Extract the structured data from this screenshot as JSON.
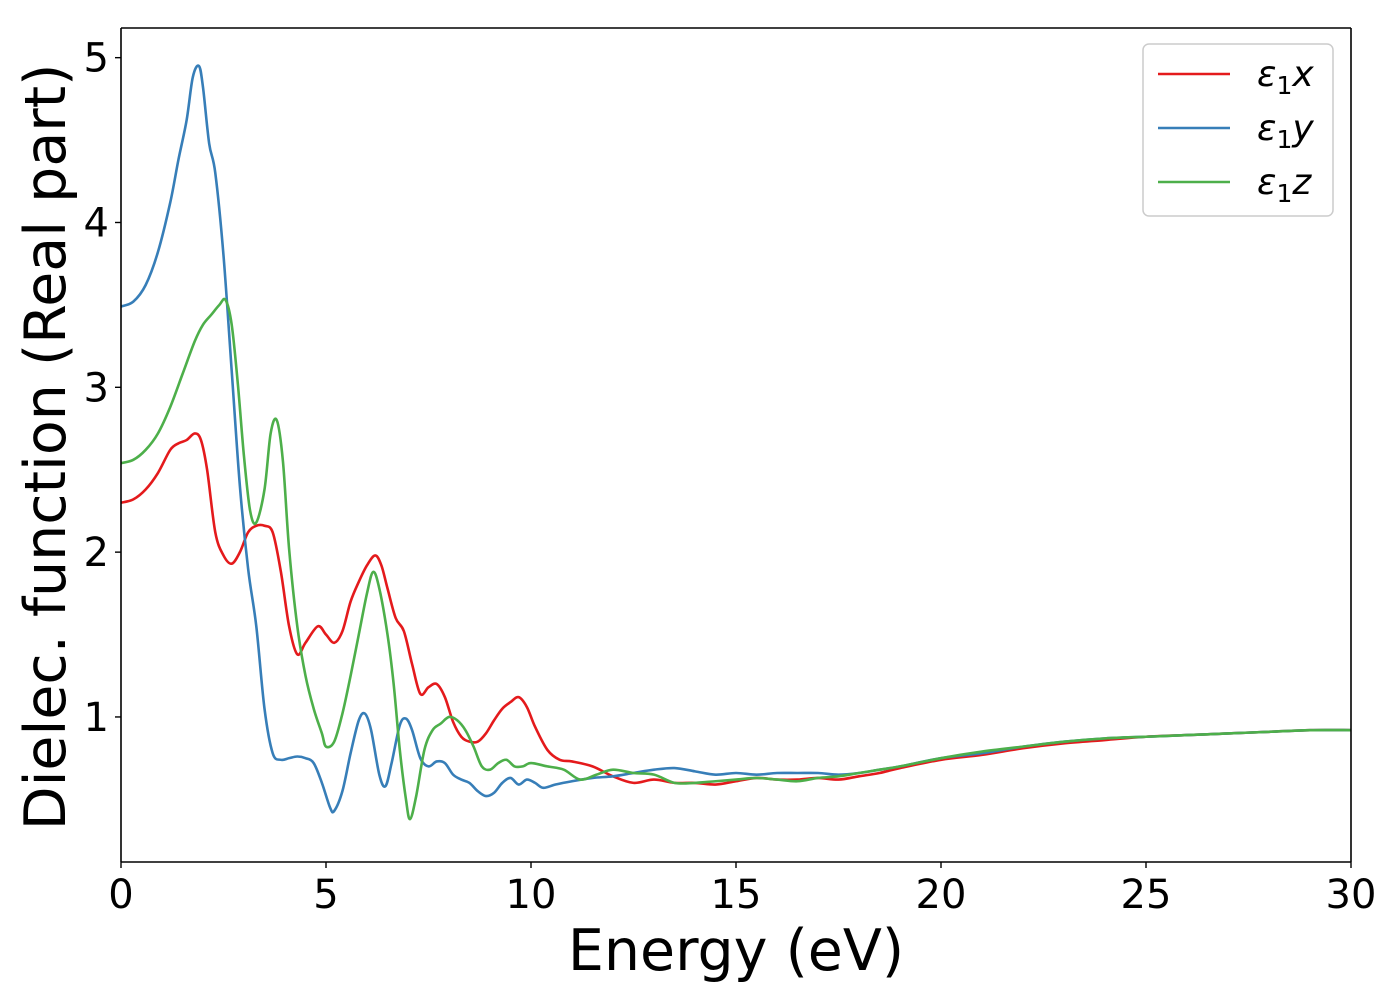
{
  "chart_data": {
    "type": "line",
    "title": "",
    "xlabel": "Energy (eV)",
    "ylabel": "Dielec. function (Real part)",
    "xlim": [
      0,
      30
    ],
    "ylim": [
      0.12,
      5.18
    ],
    "xticks": [
      0,
      5,
      10,
      15,
      20,
      25,
      30
    ],
    "yticks": [
      1,
      2,
      3,
      4,
      5
    ],
    "grid": false,
    "legend_position": "top-right",
    "series": [
      {
        "name": "ε1x",
        "label_main": "ε",
        "label_sub": "1",
        "label_var": "x",
        "color": "#e41a1c",
        "x": [
          0,
          0.3,
          0.6,
          0.9,
          1.2,
          1.4,
          1.6,
          1.8,
          1.95,
          2.1,
          2.3,
          2.5,
          2.7,
          2.9,
          3.1,
          3.3,
          3.5,
          3.7,
          3.9,
          4.1,
          4.3,
          4.5,
          4.8,
          5.0,
          5.2,
          5.4,
          5.6,
          5.8,
          6.0,
          6.2,
          6.35,
          6.5,
          6.7,
          6.9,
          7.1,
          7.3,
          7.5,
          7.7,
          7.9,
          8.1,
          8.3,
          8.5,
          8.7,
          8.9,
          9.1,
          9.3,
          9.5,
          9.7,
          9.9,
          10.1,
          10.4,
          10.7,
          11.0,
          11.5,
          12.0,
          12.5,
          13.0,
          13.5,
          14.0,
          14.5,
          15.0,
          15.5,
          16.0,
          16.5,
          17.0,
          17.5,
          18.0,
          18.5,
          19.0,
          20.0,
          21.0,
          22.0,
          23.0,
          24.0,
          25.0,
          26.0,
          27.0,
          28.0,
          29.0,
          30.0
        ],
        "y": [
          2.3,
          2.32,
          2.38,
          2.48,
          2.62,
          2.66,
          2.68,
          2.72,
          2.68,
          2.5,
          2.12,
          1.98,
          1.93,
          2.0,
          2.12,
          2.16,
          2.16,
          2.12,
          1.88,
          1.55,
          1.38,
          1.45,
          1.55,
          1.5,
          1.45,
          1.52,
          1.7,
          1.82,
          1.92,
          1.98,
          1.92,
          1.78,
          1.6,
          1.52,
          1.32,
          1.14,
          1.18,
          1.2,
          1.12,
          0.97,
          0.88,
          0.85,
          0.85,
          0.9,
          0.98,
          1.05,
          1.09,
          1.12,
          1.06,
          0.94,
          0.8,
          0.74,
          0.73,
          0.7,
          0.64,
          0.6,
          0.62,
          0.6,
          0.6,
          0.59,
          0.61,
          0.63,
          0.62,
          0.62,
          0.63,
          0.62,
          0.64,
          0.66,
          0.69,
          0.74,
          0.77,
          0.81,
          0.84,
          0.86,
          0.88,
          0.89,
          0.9,
          0.91,
          0.92,
          0.92
        ]
      },
      {
        "name": "ε1y",
        "label_main": "ε",
        "label_sub": "1",
        "label_var": "y",
        "color": "#377eb8",
        "x": [
          0,
          0.3,
          0.6,
          0.9,
          1.2,
          1.4,
          1.6,
          1.75,
          1.9,
          2.0,
          2.15,
          2.3,
          2.5,
          2.7,
          2.9,
          3.1,
          3.3,
          3.5,
          3.7,
          3.9,
          4.1,
          4.3,
          4.5,
          4.7,
          4.9,
          5.1,
          5.2,
          5.4,
          5.6,
          5.8,
          5.95,
          6.1,
          6.3,
          6.45,
          6.6,
          6.8,
          6.95,
          7.1,
          7.3,
          7.5,
          7.7,
          7.9,
          8.1,
          8.3,
          8.5,
          8.7,
          8.9,
          9.1,
          9.3,
          9.5,
          9.7,
          9.9,
          10.1,
          10.3,
          10.6,
          11.0,
          11.5,
          12.0,
          12.5,
          13.0,
          13.5,
          14.0,
          14.5,
          15.0,
          15.5,
          16.0,
          16.5,
          17.0,
          17.5,
          18.0,
          18.5,
          19.0,
          20.0,
          21.0,
          22.0,
          23.0,
          24.0,
          25.0,
          26.0,
          27.0,
          28.0,
          29.0,
          30.0
        ],
        "y": [
          3.49,
          3.52,
          3.62,
          3.82,
          4.12,
          4.38,
          4.62,
          4.88,
          4.95,
          4.82,
          4.48,
          4.3,
          3.8,
          3.1,
          2.4,
          1.9,
          1.55,
          1.05,
          0.78,
          0.74,
          0.75,
          0.76,
          0.75,
          0.72,
          0.6,
          0.45,
          0.43,
          0.55,
          0.78,
          0.98,
          1.02,
          0.92,
          0.65,
          0.58,
          0.72,
          0.95,
          0.99,
          0.92,
          0.75,
          0.7,
          0.73,
          0.72,
          0.65,
          0.62,
          0.6,
          0.55,
          0.52,
          0.54,
          0.6,
          0.63,
          0.59,
          0.62,
          0.6,
          0.57,
          0.59,
          0.61,
          0.63,
          0.64,
          0.66,
          0.68,
          0.69,
          0.67,
          0.65,
          0.66,
          0.65,
          0.66,
          0.66,
          0.66,
          0.65,
          0.66,
          0.68,
          0.7,
          0.75,
          0.78,
          0.82,
          0.85,
          0.87,
          0.88,
          0.89,
          0.9,
          0.91,
          0.92,
          0.92
        ]
      },
      {
        "name": "ε1z",
        "label_main": "ε",
        "label_sub": "1",
        "label_var": "z",
        "color": "#4daf4a",
        "x": [
          0,
          0.3,
          0.6,
          0.9,
          1.2,
          1.5,
          1.8,
          2.0,
          2.2,
          2.4,
          2.55,
          2.7,
          2.85,
          3.0,
          3.15,
          3.3,
          3.5,
          3.65,
          3.8,
          3.95,
          4.1,
          4.3,
          4.5,
          4.7,
          4.9,
          5.0,
          5.2,
          5.4,
          5.6,
          5.8,
          6.0,
          6.15,
          6.3,
          6.5,
          6.65,
          6.8,
          6.95,
          7.05,
          7.2,
          7.4,
          7.6,
          7.8,
          8.0,
          8.2,
          8.4,
          8.6,
          8.8,
          9.0,
          9.2,
          9.4,
          9.6,
          9.8,
          10.0,
          10.4,
          10.8,
          11.2,
          11.6,
          12.0,
          12.5,
          13.0,
          13.5,
          14.0,
          14.5,
          15.0,
          15.5,
          16.0,
          16.5,
          17.0,
          17.5,
          18.0,
          18.5,
          19.0,
          20.0,
          21.0,
          22.0,
          23.0,
          24.0,
          25.0,
          26.0,
          27.0,
          28.0,
          29.0,
          30.0
        ],
        "y": [
          2.54,
          2.56,
          2.62,
          2.72,
          2.88,
          3.08,
          3.28,
          3.38,
          3.44,
          3.5,
          3.53,
          3.38,
          3.02,
          2.58,
          2.25,
          2.18,
          2.38,
          2.72,
          2.8,
          2.55,
          2.02,
          1.55,
          1.25,
          1.05,
          0.9,
          0.82,
          0.85,
          1.02,
          1.25,
          1.5,
          1.75,
          1.88,
          1.78,
          1.5,
          1.2,
          0.8,
          0.5,
          0.38,
          0.52,
          0.8,
          0.92,
          0.96,
          1.0,
          0.98,
          0.92,
          0.82,
          0.7,
          0.68,
          0.72,
          0.74,
          0.7,
          0.7,
          0.72,
          0.7,
          0.68,
          0.62,
          0.65,
          0.68,
          0.66,
          0.65,
          0.6,
          0.6,
          0.61,
          0.62,
          0.63,
          0.62,
          0.61,
          0.63,
          0.64,
          0.66,
          0.68,
          0.7,
          0.75,
          0.79,
          0.82,
          0.85,
          0.87,
          0.88,
          0.89,
          0.9,
          0.91,
          0.92,
          0.92
        ]
      }
    ]
  }
}
